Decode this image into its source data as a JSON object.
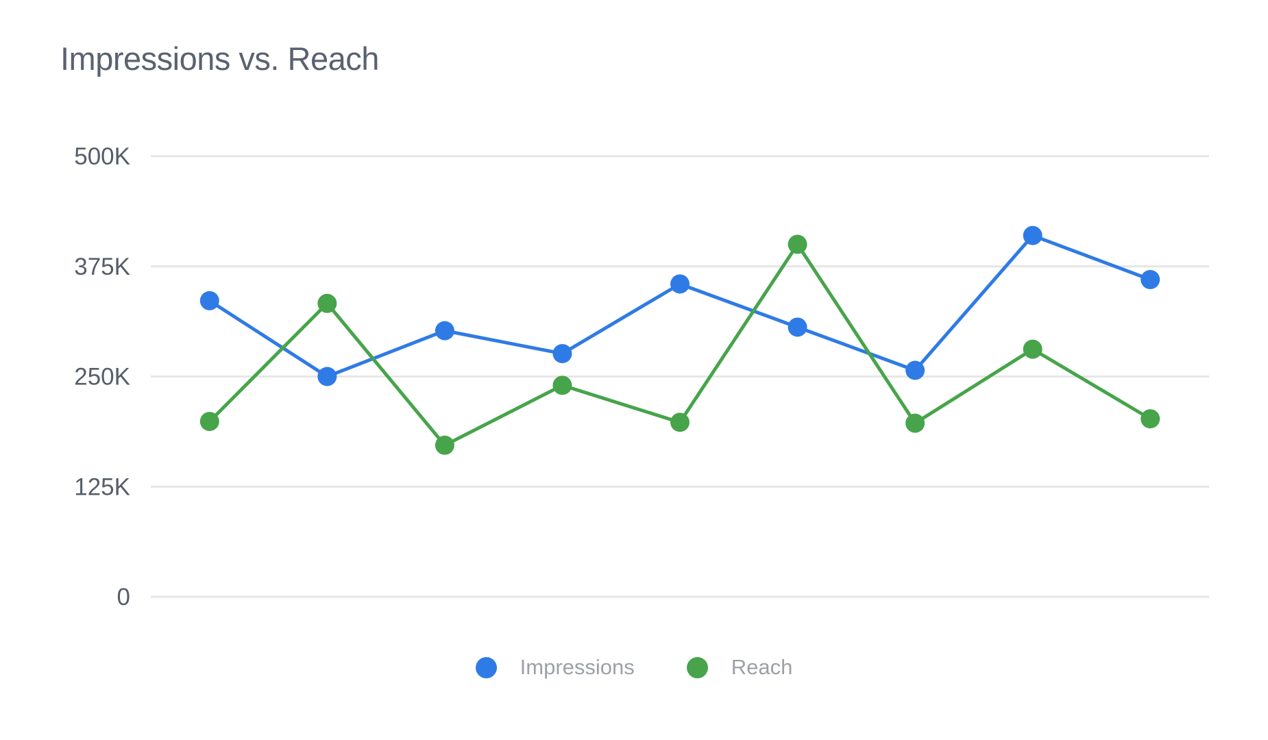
{
  "chart_data": {
    "type": "line",
    "title": "Impressions vs. Reach",
    "series": [
      {
        "name": "Impressions",
        "color": "#2F7BE5",
        "values": [
          336000,
          250000,
          302000,
          276000,
          355000,
          306000,
          257000,
          410000,
          360000
        ]
      },
      {
        "name": "Reach",
        "color": "#47A44B",
        "values": [
          199000,
          333000,
          172000,
          240000,
          198000,
          400000,
          197000,
          281000,
          202000
        ]
      }
    ],
    "ylim": [
      0,
      500000
    ],
    "yticks": [
      {
        "value": 500000,
        "label": "500K"
      },
      {
        "value": 375000,
        "label": "375K"
      },
      {
        "value": 250000,
        "label": "250K"
      },
      {
        "value": 125000,
        "label": "125K"
      },
      {
        "value": 0,
        "label": "0"
      }
    ],
    "x_tick_labels_visible": false,
    "grid": "horizontal",
    "gridline_color": "#E6E6E6",
    "legend_position": "bottom",
    "legend_text_color": "#9CA1A8",
    "title_color": "#5A6270",
    "axis_label_color": "#555E69",
    "background_color": "#FFFFFF"
  }
}
